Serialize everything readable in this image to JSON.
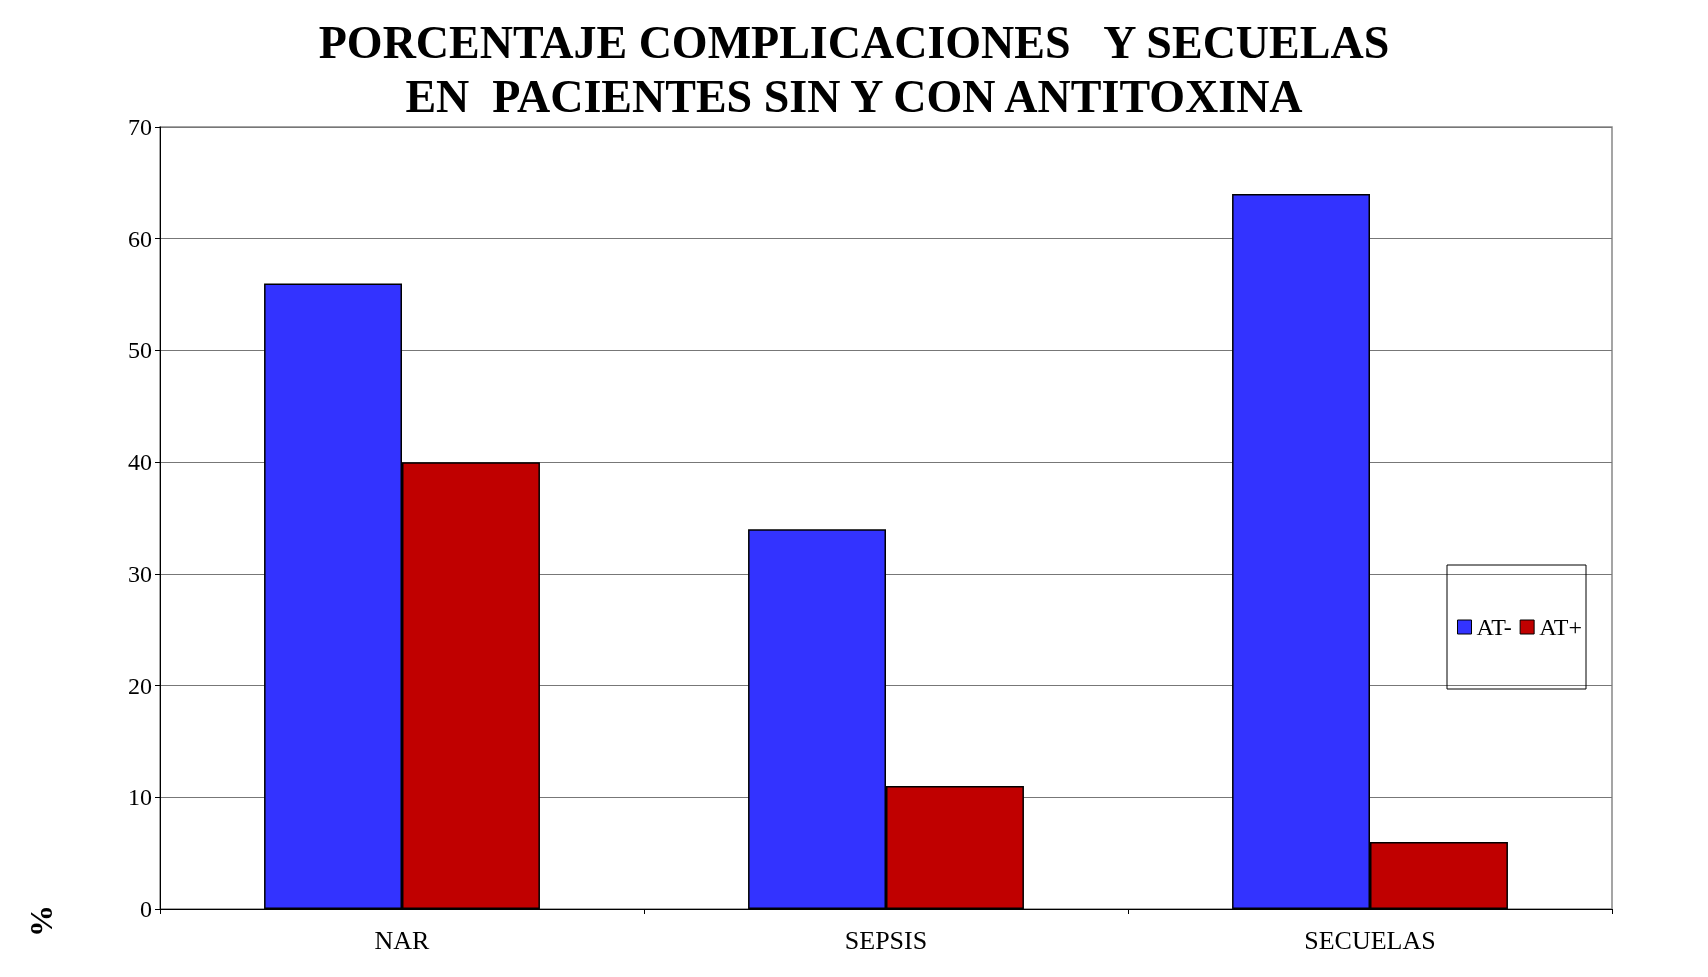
{
  "chart_data": {
    "type": "bar",
    "title": "PORCENTAJE COMPLICACIONES   Y SECUELAS\nEN  PACIENTES SIN Y CON ANTITOXINA",
    "ylabel": "%",
    "categories": [
      "NAR",
      "SEPSIS",
      "SECUELAS"
    ],
    "series": [
      {
        "name": "AT-",
        "color": "#3333ff",
        "values": [
          56,
          34,
          64
        ]
      },
      {
        "name": "AT+",
        "color": "#c00000",
        "values": [
          40,
          11,
          6
        ]
      }
    ],
    "ylim": [
      0,
      70
    ],
    "yticks": [
      0,
      10,
      20,
      30,
      40,
      50,
      60,
      70
    ],
    "grid": "y",
    "legend": "right"
  }
}
